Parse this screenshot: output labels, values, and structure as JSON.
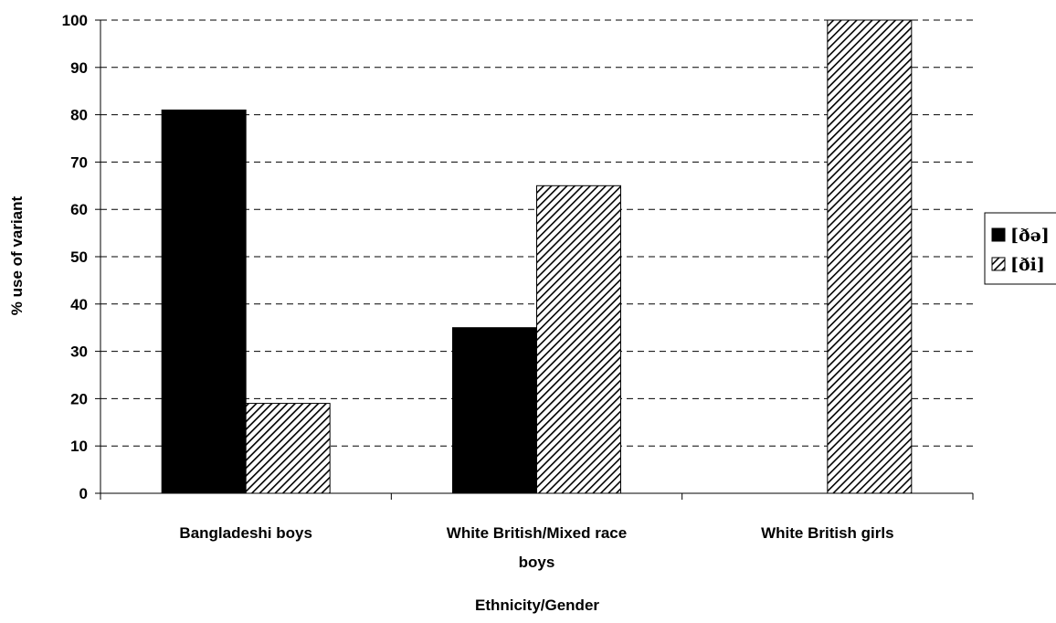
{
  "chart_data": {
    "type": "bar",
    "categories": [
      "Bangladeshi boys",
      "White British/Mixed race boys",
      "White British girls"
    ],
    "category_lines": [
      [
        "Bangladeshi boys"
      ],
      [
        "White British/Mixed race",
        "boys"
      ],
      [
        "White British girls"
      ]
    ],
    "series": [
      {
        "name": "[ðə]",
        "values": [
          81,
          35,
          0
        ],
        "fill": "solid-black"
      },
      {
        "name": "[ði]",
        "values": [
          19,
          65,
          100
        ],
        "fill": "diagonal-hatch"
      }
    ],
    "xlabel": "Ethnicity/Gender",
    "ylabel": "% use of variant",
    "ylim": [
      0,
      100
    ],
    "yticks": [
      "0",
      "10",
      "20",
      "30",
      "40",
      "50",
      "60",
      "70",
      "80",
      "90",
      "100"
    ],
    "grid": "dashed horizontal",
    "legend_position": "right",
    "colors": {
      "bar_solid": "#000000",
      "hatch_stroke": "#000000",
      "background": "#ffffff"
    }
  }
}
